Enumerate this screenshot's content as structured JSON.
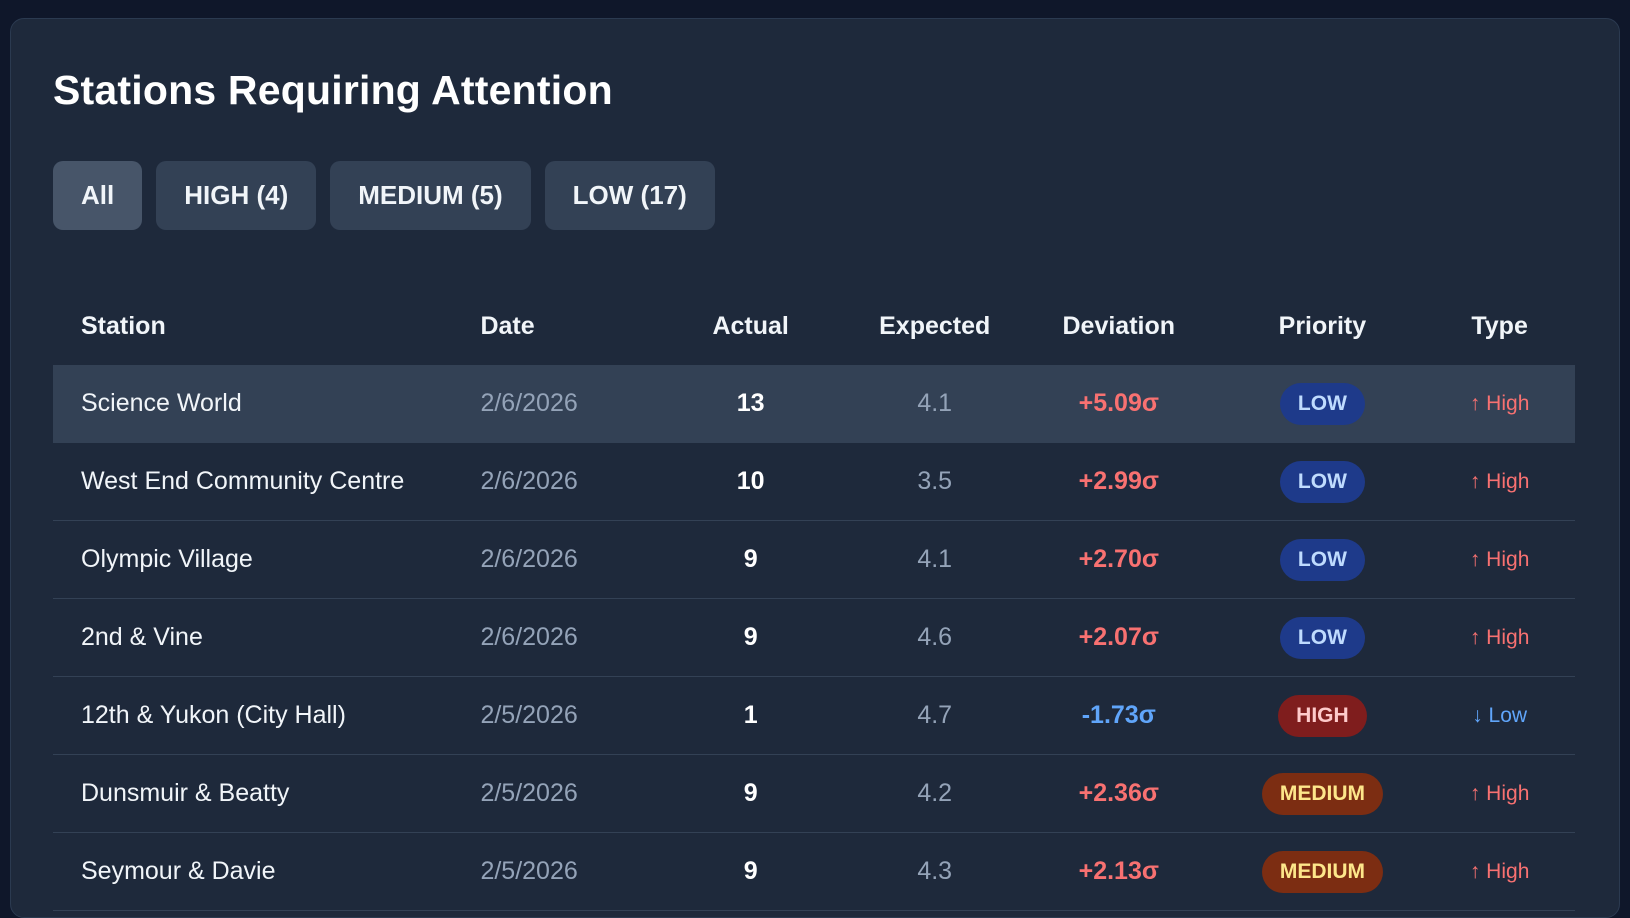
{
  "panel": {
    "title": "Stations Requiring Attention"
  },
  "filters": [
    {
      "label": "All",
      "active": true
    },
    {
      "label": "HIGH (4)",
      "active": false
    },
    {
      "label": "MEDIUM (5)",
      "active": false
    },
    {
      "label": "LOW (17)",
      "active": false
    }
  ],
  "table": {
    "headers": {
      "station": "Station",
      "date": "Date",
      "actual": "Actual",
      "expected": "Expected",
      "deviation": "Deviation",
      "priority": "Priority",
      "type": "Type"
    },
    "rows": [
      {
        "station": "Science World",
        "date": "2/6/2026",
        "actual": "13",
        "expected": "4.1",
        "deviation": "+5.09σ",
        "priority": "LOW",
        "type": "↑ High"
      },
      {
        "station": "West End Community Centre",
        "date": "2/6/2026",
        "actual": "10",
        "expected": "3.5",
        "deviation": "+2.99σ",
        "priority": "LOW",
        "type": "↑ High"
      },
      {
        "station": "Olympic Village",
        "date": "2/6/2026",
        "actual": "9",
        "expected": "4.1",
        "deviation": "+2.70σ",
        "priority": "LOW",
        "type": "↑ High"
      },
      {
        "station": "2nd & Vine",
        "date": "2/6/2026",
        "actual": "9",
        "expected": "4.6",
        "deviation": "+2.07σ",
        "priority": "LOW",
        "type": "↑ High"
      },
      {
        "station": "12th & Yukon (City Hall)",
        "date": "2/5/2026",
        "actual": "1",
        "expected": "4.7",
        "deviation": "-1.73σ",
        "priority": "HIGH",
        "type": "↓ Low"
      },
      {
        "station": "Dunsmuir & Beatty",
        "date": "2/5/2026",
        "actual": "9",
        "expected": "4.2",
        "deviation": "+2.36σ",
        "priority": "MEDIUM",
        "type": "↑ High"
      },
      {
        "station": "Seymour & Davie",
        "date": "2/5/2026",
        "actual": "9",
        "expected": "4.3",
        "deviation": "+2.13σ",
        "priority": "MEDIUM",
        "type": "↑ High"
      }
    ]
  },
  "colors": {
    "background": "#0f172a",
    "panel": "#1e293b",
    "positive_deviation": "#f87171",
    "negative_deviation": "#60a5fa",
    "badge_low": "#1e3a8a",
    "badge_high": "#7f1d1d",
    "badge_medium": "#7c2d12"
  }
}
